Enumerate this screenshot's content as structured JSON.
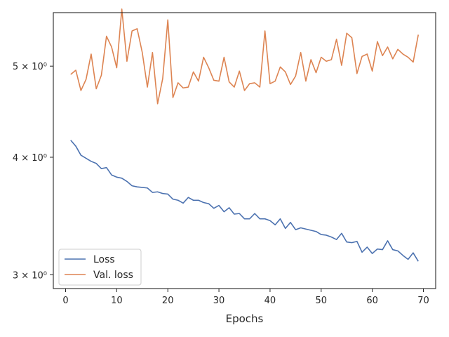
{
  "chart_data": {
    "type": "line",
    "title": "",
    "xlabel": "Epochs",
    "ylabel": "",
    "xlim": [
      -2.4,
      72.4
    ],
    "ylim": [
      2.9,
      5.7
    ],
    "yscale": "log",
    "grid": false,
    "legend_position": "lower-left",
    "x_ticks": [
      0,
      10,
      20,
      30,
      40,
      50,
      60,
      70
    ],
    "x_tick_labels": [
      "0",
      "10",
      "20",
      "30",
      "40",
      "50",
      "60",
      "70"
    ],
    "y_ticks": [
      3,
      4,
      5
    ],
    "y_tick_labels": [
      "3 × 10⁰",
      "4 × 10⁰",
      "5 × 10⁰"
    ],
    "x": [
      1,
      2,
      3,
      4,
      5,
      6,
      7,
      8,
      9,
      10,
      11,
      12,
      13,
      14,
      15,
      16,
      17,
      18,
      19,
      20,
      21,
      22,
      23,
      24,
      25,
      26,
      27,
      28,
      29,
      30,
      31,
      32,
      33,
      34,
      35,
      36,
      37,
      38,
      39,
      40,
      41,
      42,
      43,
      44,
      45,
      46,
      47,
      48,
      49,
      50,
      51,
      52,
      53,
      54,
      55,
      56,
      57,
      58,
      59,
      60,
      61,
      62,
      63,
      64,
      65,
      66,
      67,
      68,
      69
    ],
    "series": [
      {
        "name": "Loss",
        "color": "#4c72b0",
        "values": [
          4.17,
          4.11,
          4.02,
          3.99,
          3.96,
          3.94,
          3.89,
          3.9,
          3.83,
          3.81,
          3.8,
          3.77,
          3.73,
          3.72,
          3.715,
          3.71,
          3.67,
          3.675,
          3.66,
          3.655,
          3.61,
          3.6,
          3.575,
          3.625,
          3.6,
          3.6,
          3.58,
          3.57,
          3.53,
          3.555,
          3.5,
          3.535,
          3.48,
          3.485,
          3.44,
          3.44,
          3.485,
          3.44,
          3.44,
          3.425,
          3.39,
          3.44,
          3.36,
          3.41,
          3.35,
          3.365,
          3.355,
          3.345,
          3.335,
          3.31,
          3.305,
          3.29,
          3.27,
          3.32,
          3.25,
          3.245,
          3.255,
          3.17,
          3.21,
          3.16,
          3.195,
          3.19,
          3.26,
          3.19,
          3.18,
          3.145,
          3.115,
          3.165,
          3.1
        ]
      },
      {
        "name": "Val. loss",
        "color": "#dd8452",
        "values": [
          4.9,
          4.95,
          4.71,
          4.84,
          5.15,
          4.73,
          4.89,
          5.38,
          5.24,
          4.98,
          5.75,
          5.06,
          5.45,
          5.48,
          5.17,
          4.75,
          5.17,
          4.56,
          4.85,
          5.6,
          4.63,
          4.8,
          4.74,
          4.75,
          4.93,
          4.82,
          5.11,
          4.98,
          4.83,
          4.82,
          5.11,
          4.81,
          4.75,
          4.94,
          4.71,
          4.79,
          4.8,
          4.75,
          5.45,
          4.79,
          4.82,
          4.99,
          4.93,
          4.78,
          4.88,
          5.17,
          4.82,
          5.08,
          4.92,
          5.11,
          5.06,
          5.08,
          5.34,
          5.01,
          5.42,
          5.36,
          4.91,
          5.12,
          5.15,
          4.94,
          5.31,
          5.13,
          5.24,
          5.09,
          5.21,
          5.15,
          5.11,
          5.05,
          5.4
        ]
      }
    ]
  }
}
